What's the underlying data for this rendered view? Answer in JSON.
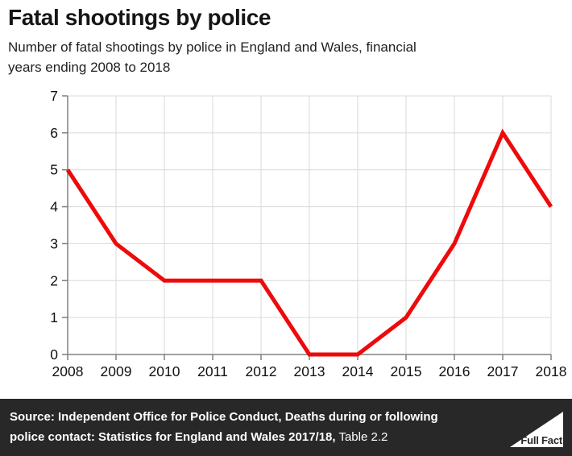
{
  "chart_data": {
    "type": "line",
    "title": "Fatal shootings by police",
    "subtitle_lines": [
      "Number of fatal shootings by police in England and Wales, financial",
      "years ending 2008 to 2018"
    ],
    "x": [
      2008,
      2009,
      2010,
      2011,
      2012,
      2013,
      2014,
      2015,
      2016,
      2017,
      2018
    ],
    "values": [
      5,
      3,
      2,
      2,
      2,
      0,
      0,
      1,
      3,
      6,
      4
    ],
    "series_name": "Number of fatal shootings by police",
    "xlabel": "",
    "ylabel": "",
    "ylim": [
      0,
      7
    ],
    "yticks": [
      0,
      1,
      2,
      3,
      4,
      5,
      6,
      7
    ],
    "grid": true,
    "legend": false,
    "line_color": "#ee0a0a",
    "grid_color": "#d9d9d9",
    "axis_color": "#808080",
    "tick_label_color": "#111111",
    "line_width": 5
  },
  "footer": {
    "bg_color": "#282828",
    "lines": [
      {
        "bold": "Source: Independent Office for Police Conduct, Deaths during or following",
        "regular": ""
      },
      {
        "bold": "police contact: Statistics for England and Wales 2017/18,",
        "regular": " Table 2.2"
      }
    ],
    "logo_text": "Full Fact"
  }
}
